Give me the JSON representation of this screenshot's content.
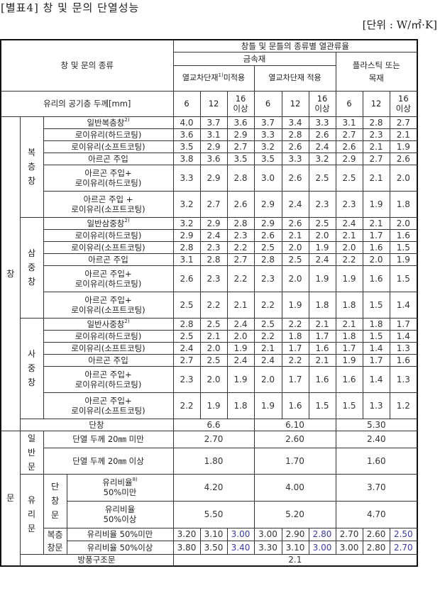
{
  "title": "[별표4] 창 및 문의 단열성능",
  "unit": "[단위 : W/㎡·K]",
  "header": {
    "type_label": "창 및 문의 종류",
    "frame_label": "창틀 및 문틀의 종류별 열관류율",
    "metal": "금속재",
    "plastic_wood": "플라스틱 또는 목재",
    "no_thermal_break": "열교차단재",
    "no_thermal_break_note": "1)",
    "no_thermal_break_suffix": "미적용",
    "thermal_break": "열교차단재 적용",
    "air_gap_label": "유리의 공기층 두께[mm]",
    "thickness": [
      "6",
      "12",
      "16\n이상",
      "6",
      "12",
      "16\n이상",
      "6",
      "12",
      "16\n이상"
    ]
  },
  "window": {
    "label": "창",
    "groups": [
      {
        "label": "복층창",
        "rows": [
          {
            "label": "일반복층창",
            "note": "2)",
            "values": [
              "4.0",
              "3.7",
              "3.6",
              "3.7",
              "3.4",
              "3.3",
              "3.1",
              "2.8",
              "2.7"
            ]
          },
          {
            "label": "로이유리(하드코팅)",
            "values": [
              "3.6",
              "3.1",
              "2.9",
              "3.3",
              "2.8",
              "2.6",
              "2.7",
              "2.3",
              "2.1"
            ]
          },
          {
            "label": "로이유리(소프트코팅)",
            "values": [
              "3.5",
              "2.9",
              "2.7",
              "3.2",
              "2.6",
              "2.4",
              "2.6",
              "2.1",
              "1.9"
            ]
          },
          {
            "label": "아르곤 주입",
            "values": [
              "3.8",
              "3.6",
              "3.5",
              "3.5",
              "3.3",
              "3.2",
              "2.9",
              "2.7",
              "2.6"
            ]
          },
          {
            "label": "아르곤 주입+\n로이유리(하드코팅)",
            "values": [
              "3.3",
              "2.9",
              "2.8",
              "3.0",
              "2.6",
              "2.5",
              "2.5",
              "2.1",
              "2.0"
            ]
          },
          {
            "label": "아르곤 주입 +\n로이유리(소프트코팅)",
            "values": [
              "3.2",
              "2.7",
              "2.6",
              "2.9",
              "2.4",
              "2.3",
              "2.3",
              "1.9",
              "1.8"
            ]
          }
        ]
      },
      {
        "label": "삼중창",
        "rows": [
          {
            "label": "일반삼중창",
            "note": "2)",
            "values": [
              "3.2",
              "2.9",
              "2.8",
              "2.9",
              "2.6",
              "2.5",
              "2.4",
              "2.1",
              "2.0"
            ]
          },
          {
            "label": "로이유리(하드코팅)",
            "values": [
              "2.9",
              "2.4",
              "2.3",
              "2.6",
              "2.1",
              "2.0",
              "2.1",
              "1.7",
              "1.6"
            ]
          },
          {
            "label": "로이유리(소프트코팅)",
            "values": [
              "2.8",
              "2.3",
              "2.2",
              "2.5",
              "2.0",
              "1.9",
              "2.0",
              "1.6",
              "1.5"
            ]
          },
          {
            "label": "아르곤 주입",
            "values": [
              "3.1",
              "2.8",
              "2.7",
              "2.8",
              "2.5",
              "2.4",
              "2.2",
              "2.0",
              "1.9"
            ]
          },
          {
            "label": "아르곤 주입+\n로이유리(하드코팅)",
            "values": [
              "2.6",
              "2.3",
              "2.2",
              "2.3",
              "2.0",
              "1.9",
              "1.9",
              "1.6",
              "1.5"
            ]
          },
          {
            "label": "아르곤 주입+\n로이유리(소프트코팅)",
            "values": [
              "2.5",
              "2.2",
              "2.1",
              "2.2",
              "1.9",
              "1.8",
              "1.8",
              "1.5",
              "1.4"
            ]
          }
        ]
      },
      {
        "label": "사중창",
        "rows": [
          {
            "label": "일반사중창",
            "note": "2)",
            "values": [
              "2.8",
              "2.5",
              "2.4",
              "2.5",
              "2.2",
              "2.1",
              "2.1",
              "1.8",
              "1.7"
            ]
          },
          {
            "label": "로이유리(하드코팅)",
            "values": [
              "2.5",
              "2.1",
              "2.0",
              "2.2",
              "1.8",
              "1.7",
              "1.8",
              "1.5",
              "1.4"
            ]
          },
          {
            "label": "로이유리(소프트코팅)",
            "values": [
              "2.4",
              "2.0",
              "1.9",
              "2.1",
              "1.7",
              "1.6",
              "1.7",
              "1.4",
              "1.3"
            ]
          },
          {
            "label": "아르곤 주입",
            "values": [
              "2.7",
              "2.5",
              "2.4",
              "2.4",
              "2.2",
              "2.1",
              "1.9",
              "1.7",
              "1.6"
            ]
          },
          {
            "label": "아르곤 주입+\n로이유리(하드코팅)",
            "values": [
              "2.3",
              "2.0",
              "1.9",
              "2.0",
              "1.7",
              "1.6",
              "1.6",
              "1.4",
              "1.3"
            ]
          },
          {
            "label": "아르곤 주입+\n로이유리(소프트코팅)",
            "values": [
              "2.2",
              "1.9",
              "1.8",
              "1.9",
              "1.6",
              "1.5",
              "1.5",
              "1.3",
              "1.2"
            ]
          }
        ]
      }
    ],
    "single": {
      "label": "단창",
      "values": [
        "6.6",
        "6.10",
        "5.30"
      ]
    }
  },
  "door": {
    "label": "문",
    "general": {
      "label": "일반문",
      "rows": [
        {
          "label": "단열 두께 20㎜ 미만",
          "values": [
            "2.70",
            "2.60",
            "2.40"
          ]
        },
        {
          "label": "단열 두께 20㎜ 이상",
          "values": [
            "1.80",
            "1.70",
            "1.60"
          ]
        }
      ]
    },
    "glass": {
      "label": "유리문",
      "single": {
        "label": "단창문",
        "rows": [
          {
            "label": "유리비율",
            "note": "8)",
            "label2": "50%미만",
            "values": [
              "4.20",
              "4.00",
              "3.70"
            ]
          },
          {
            "label": "유리비율",
            "label2": "50%이상",
            "values": [
              "5.50",
              "5.20",
              "4.70"
            ]
          }
        ]
      },
      "double": {
        "label": "복층창문",
        "rows": [
          {
            "label": "유리비율 50%미만",
            "values": [
              "3.20",
              "3.10",
              "3.00",
              "3.00",
              "2.90",
              "2.80",
              "2.70",
              "2.60",
              "2.50"
            ]
          },
          {
            "label": "유리비율 50%이상",
            "values": [
              "3.80",
              "3.50",
              "3.40",
              "3.30",
              "3.10",
              "3.00",
              "3.00",
              "2.80",
              "2.70"
            ]
          }
        ]
      }
    },
    "windbreak": {
      "label": "방풍구조문",
      "value": "2.1"
    }
  },
  "colors": {
    "highlight_values": "#3a3aa0",
    "border": "#333333"
  }
}
